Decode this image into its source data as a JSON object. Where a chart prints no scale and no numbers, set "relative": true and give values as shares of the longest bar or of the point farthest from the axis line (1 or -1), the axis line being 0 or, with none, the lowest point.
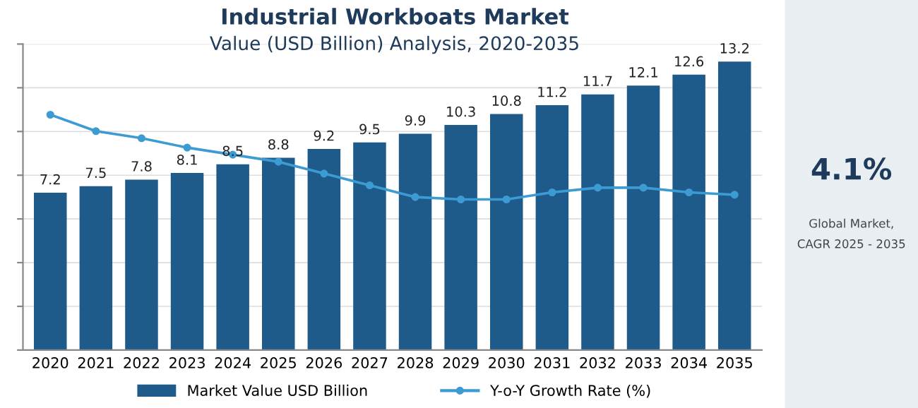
{
  "chart_data": [
    {
      "type": "bar",
      "title": "Industrial Workboats Market",
      "subtitle": "Value (USD Billion) Analysis, 2020-2035",
      "categories": [
        "2020",
        "2021",
        "2022",
        "2023",
        "2024",
        "2025",
        "2026",
        "2027",
        "2028",
        "2029",
        "2030",
        "2031",
        "2032",
        "2033",
        "2034",
        "2035"
      ],
      "series": [
        {
          "name": "Market Value USD Billion",
          "color": "#1e5a8a",
          "values": [
            7.2,
            7.5,
            7.8,
            8.1,
            8.5,
            8.8,
            9.2,
            9.5,
            9.9,
            10.3,
            10.8,
            11.2,
            11.7,
            12.1,
            12.6,
            13.2
          ]
        }
      ],
      "data_labels": true,
      "ylim": [
        0,
        14
      ],
      "yticks": [
        {
          "value": 0,
          "label": null
        },
        {
          "value": 2,
          "label": null
        },
        {
          "value": 4,
          "label": null
        },
        {
          "value": 6,
          "label": null
        },
        {
          "value": 8,
          "label": null
        },
        {
          "value": 10,
          "label": null
        },
        {
          "value": 12,
          "label": null
        },
        {
          "value": 14,
          "label": null
        }
      ],
      "grid": "y",
      "legend": "bottom"
    },
    {
      "type": "line",
      "relative": true,
      "marker": "circle",
      "legend": "bottom",
      "categories": [
        null,
        null,
        null,
        null,
        null,
        null,
        null,
        null,
        null,
        null,
        null,
        null,
        null,
        null,
        null,
        null
      ],
      "series": [
        {
          "name": "Y-o-Y Growth Rate (%)",
          "color": "#3d9bd4",
          "values": [
            1,
            0.93,
            0.9,
            0.86,
            0.83,
            0.8,
            0.75,
            0.7,
            0.65,
            0.64,
            0.64,
            0.67,
            0.69,
            0.69,
            0.67,
            0.66
          ]
        }
      ]
    },
    {
      "type": "other",
      "title": "4.1%",
      "annotations": [
        "Global Market,",
        "CAGR 2025 - 2035"
      ]
    }
  ]
}
